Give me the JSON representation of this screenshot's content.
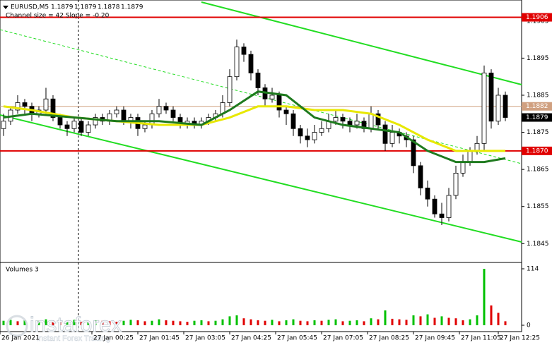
{
  "chart_data": {
    "type": "candlestick",
    "title": "EURUSD,M5",
    "header_values": [
      1.1879,
      1.1879,
      1.1878,
      1.1879
    ],
    "subtitle": "Channel size = 42 Slope = -0.20",
    "volume_title": "Volumes 3",
    "watermark": "instaforex",
    "watermark_sub": "Instant Forex Trading",
    "ylim": [
      1.18403,
      1.19101
    ],
    "yticks": [
      1.1905,
      1.1895,
      1.1885,
      1.1875,
      1.1865,
      1.1855,
      1.1845
    ],
    "xlim": [
      -0.5,
      73.3
    ],
    "xticks": [
      {
        "value": -0.5,
        "label": "26 Jan 2021"
      },
      {
        "value": 12.5,
        "label": "27 Jan 00:25"
      },
      {
        "value": 19,
        "label": "27 Jan 01:45"
      },
      {
        "value": 25.5,
        "label": "27 Jan 03:05"
      },
      {
        "value": 32,
        "label": "27 Jan 04:25"
      },
      {
        "value": 38.5,
        "label": "27 Jan 05:45"
      },
      {
        "value": 45,
        "label": "27 Jan 07:05"
      },
      {
        "value": 51.5,
        "label": "27 Jan 08:25"
      },
      {
        "value": 58,
        "label": "27 Jan 09:45"
      },
      {
        "value": 64.5,
        "label": "27 Jan 11:05"
      },
      {
        "value": 70,
        "label": "27 Jan 12:25"
      }
    ],
    "candles": [
      [
        1.1876,
        1.188,
        1.1874,
        1.1878
      ],
      [
        1.1878,
        1.1882,
        1.1877,
        1.1881
      ],
      [
        1.1881,
        1.1885,
        1.188,
        1.1883
      ],
      [
        1.1883,
        1.1884,
        1.188,
        1.1882
      ],
      [
        1.1882,
        1.1883,
        1.1878,
        1.188
      ],
      [
        1.188,
        1.1882,
        1.1879,
        1.1881
      ],
      [
        1.1881,
        1.1887,
        1.188,
        1.1884
      ],
      [
        1.1884,
        1.1885,
        1.1878,
        1.1879
      ],
      [
        1.1879,
        1.188,
        1.1876,
        1.1877
      ],
      [
        1.1877,
        1.1878,
        1.1874,
        1.1876
      ],
      [
        1.1876,
        1.1879,
        1.1875,
        1.1878
      ],
      [
        1.1878,
        1.1879,
        1.1874,
        1.1875
      ],
      [
        1.1875,
        1.1878,
        1.1874,
        1.1877
      ],
      [
        1.1877,
        1.188,
        1.1876,
        1.1879
      ],
      [
        1.1879,
        1.188,
        1.1877,
        1.1878
      ],
      [
        1.1878,
        1.1881,
        1.1877,
        1.188
      ],
      [
        1.188,
        1.1882,
        1.1879,
        1.1881
      ],
      [
        1.1881,
        1.1882,
        1.1877,
        1.1878
      ],
      [
        1.1878,
        1.188,
        1.1876,
        1.1879
      ],
      [
        1.1879,
        1.188,
        1.1874,
        1.1876
      ],
      [
        1.1876,
        1.1878,
        1.1875,
        1.1877
      ],
      [
        1.1877,
        1.1881,
        1.1876,
        1.188
      ],
      [
        1.188,
        1.1884,
        1.1879,
        1.1882
      ],
      [
        1.1882,
        1.1883,
        1.188,
        1.1881
      ],
      [
        1.1881,
        1.1882,
        1.1878,
        1.1879
      ],
      [
        1.1879,
        1.188,
        1.1876,
        1.1877
      ],
      [
        1.1877,
        1.1879,
        1.1876,
        1.1878
      ],
      [
        1.1878,
        1.1879,
        1.1876,
        1.1877
      ],
      [
        1.1877,
        1.1879,
        1.1876,
        1.1878
      ],
      [
        1.1878,
        1.188,
        1.1877,
        1.1879
      ],
      [
        1.1879,
        1.1881,
        1.1878,
        1.188
      ],
      [
        1.188,
        1.1885,
        1.1879,
        1.1883
      ],
      [
        1.1883,
        1.1892,
        1.1882,
        1.189
      ],
      [
        1.189,
        1.19,
        1.1889,
        1.1898
      ],
      [
        1.1898,
        1.1899,
        1.1894,
        1.1896
      ],
      [
        1.1896,
        1.1897,
        1.1889,
        1.1891
      ],
      [
        1.1891,
        1.1892,
        1.1885,
        1.1887
      ],
      [
        1.1887,
        1.1888,
        1.1882,
        1.1884
      ],
      [
        1.1884,
        1.1887,
        1.1883,
        1.1885
      ],
      [
        1.1885,
        1.1886,
        1.1879,
        1.1881
      ],
      [
        1.1881,
        1.1882,
        1.1877,
        1.188
      ],
      [
        1.188,
        1.1881,
        1.1874,
        1.1876
      ],
      [
        1.1876,
        1.1877,
        1.1872,
        1.1874
      ],
      [
        1.1874,
        1.1876,
        1.1871,
        1.1873
      ],
      [
        1.1873,
        1.1877,
        1.1872,
        1.1875
      ],
      [
        1.1875,
        1.1878,
        1.1874,
        1.1876
      ],
      [
        1.1876,
        1.188,
        1.1875,
        1.1878
      ],
      [
        1.1878,
        1.1881,
        1.1877,
        1.1879
      ],
      [
        1.1879,
        1.188,
        1.1876,
        1.1878
      ],
      [
        1.1878,
        1.1879,
        1.1875,
        1.1877
      ],
      [
        1.1877,
        1.188,
        1.1876,
        1.1878
      ],
      [
        1.1878,
        1.1879,
        1.1875,
        1.1876
      ],
      [
        1.1876,
        1.1882,
        1.1875,
        1.188
      ],
      [
        1.188,
        1.1881,
        1.1876,
        1.1877
      ],
      [
        1.1877,
        1.1878,
        1.187,
        1.1872
      ],
      [
        1.1872,
        1.1877,
        1.1871,
        1.1875
      ],
      [
        1.1875,
        1.1876,
        1.1872,
        1.1874
      ],
      [
        1.1874,
        1.1875,
        1.1871,
        1.1873
      ],
      [
        1.1873,
        1.1874,
        1.1864,
        1.1866
      ],
      [
        1.1866,
        1.1867,
        1.1858,
        1.186
      ],
      [
        1.186,
        1.1862,
        1.1855,
        1.1857
      ],
      [
        1.1857,
        1.1858,
        1.1852,
        1.1853
      ],
      [
        1.1853,
        1.1856,
        1.185,
        1.1852
      ],
      [
        1.1852,
        1.186,
        1.1851,
        1.1858
      ],
      [
        1.1858,
        1.1866,
        1.1857,
        1.1864
      ],
      [
        1.1864,
        1.1869,
        1.1863,
        1.1867
      ],
      [
        1.1867,
        1.1871,
        1.1866,
        1.187
      ],
      [
        1.187,
        1.1874,
        1.1869,
        1.1872
      ],
      [
        1.1872,
        1.1893,
        1.187,
        1.1891
      ],
      [
        1.1891,
        1.1892,
        1.1876,
        1.1878
      ],
      [
        1.1878,
        1.1887,
        1.1877,
        1.1885
      ],
      [
        1.1885,
        1.1886,
        1.1878,
        1.1879
      ]
    ],
    "moving_averages": [
      {
        "color": "#e8e800",
        "x": [
          0,
          4,
          10,
          16,
          22,
          28,
          32,
          36,
          40,
          44,
          48,
          52,
          56,
          60,
          64,
          68,
          71
        ],
        "values": [
          1.1882,
          1.1881,
          1.1879,
          1.1878,
          1.1877,
          1.1877,
          1.1879,
          1.1882,
          1.1882,
          1.1881,
          1.1881,
          1.188,
          1.1877,
          1.1873,
          1.187,
          1.187,
          1.187
        ]
      },
      {
        "color": "#1e7a1e",
        "x": [
          0,
          4,
          10,
          16,
          22,
          28,
          32,
          36,
          40,
          44,
          48,
          52,
          56,
          60,
          64,
          68,
          71
        ],
        "values": [
          1.1879,
          1.188,
          1.1879,
          1.1878,
          1.1878,
          1.1877,
          1.1881,
          1.1886,
          1.1885,
          1.1879,
          1.1877,
          1.1876,
          1.1875,
          1.187,
          1.1867,
          1.1867,
          1.1868
        ]
      }
    ],
    "levels": [
      {
        "value": 1.1906,
        "color": "#e00000"
      },
      {
        "value": 1.1882,
        "color": "#d0a080"
      },
      {
        "value": 1.187,
        "label": "1.1870",
        "color": "#e00000"
      }
    ],
    "last_price": 1.1879,
    "volume": {
      "ylim": [
        0,
        114
      ],
      "yticks": [
        0,
        114
      ],
      "up_color": "#00c000",
      "down_color": "#e00000",
      "values": [
        9,
        11,
        8,
        10,
        7,
        9,
        12,
        10,
        8,
        9,
        11,
        7,
        8,
        10,
        9,
        8,
        7,
        9,
        11,
        10,
        8,
        9,
        12,
        10,
        9,
        8,
        7,
        9,
        10,
        8,
        9,
        12,
        18,
        20,
        14,
        12,
        10,
        9,
        11,
        8,
        10,
        12,
        9,
        8,
        10,
        9,
        11,
        12,
        8,
        9,
        10,
        8,
        14,
        12,
        30,
        13,
        12,
        11,
        20,
        18,
        22,
        15,
        18,
        15,
        14,
        10,
        12,
        20,
        114,
        40,
        25,
        8
      ]
    }
  }
}
